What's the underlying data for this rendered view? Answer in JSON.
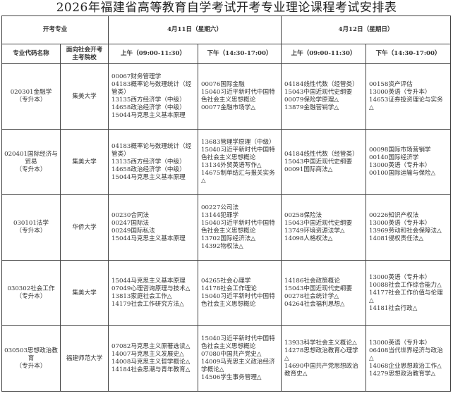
{
  "title": "2026年福建省高等教育自学考试开考专业理论课程考试安排表",
  "header": {
    "major_group": "开考专业",
    "day1": "4月11日（星期六）",
    "day2": "4月12日（星期日）",
    "col_major": "专业代码名称",
    "col_school": [
      "面向社会开考",
      "主考院校"
    ],
    "am": "上午（09:00-11:30）",
    "pm": "下午（14:30-17:00）"
  },
  "rows": [
    {
      "major": [
        "020301金融学",
        "（专升本）"
      ],
      "school": "集美大学",
      "d1_am": [
        "00067财务管理学",
        "04183概率论与数理统计（经",
        "管类）",
        "13135西方经济学（中级）",
        "14658政治经济学（中级）",
        "15044马克思主义基本原理"
      ],
      "d1_pm": [
        "00076国际金融",
        "15040习近平新时代中国特",
        "色社会主义思想概论",
        "00077金融市场学△"
      ],
      "d2_am": [
        "04184线性代数（经管类）",
        "15043中国近现代史纲要",
        "00079保险学原理△",
        "13879金融营销学△"
      ],
      "d2_pm": [
        "00158资产评估",
        "13000英语（专升本）",
        "14653证券投资理论与实务",
        "△"
      ]
    },
    {
      "major": [
        "020401国际经济与",
        "贸易",
        "（专升本）"
      ],
      "school": "集美大学",
      "d1_am": [
        "04183概率论与数理统计（经",
        "管类）",
        "13135西方经济学（中级）",
        "14658政治经济学（中级）",
        "15044马克思主义基本原理"
      ],
      "d1_pm": [
        "13683管理学原理（中级）",
        "15040习近平新时代中国特",
        "色社会主义思想概论",
        "13134外贸英语写作△",
        "14675制单结汇与报关实务",
        "△"
      ],
      "d2_am": [
        "04184线性代数（经管类）",
        "15043中国近现代史纲要",
        "00091国际商法△"
      ],
      "d2_pm": [
        "00098国际市场营销学",
        "00140国际经济学",
        "13000英语（专升本）",
        "00100国际运输与保险△"
      ]
    },
    {
      "major": [
        "030101法学",
        "（专升本）"
      ],
      "school": "华侨大学",
      "d1_am": [
        "00230合同法",
        "00247国际法",
        "00249国际私法",
        "15044马克思主义基本原理"
      ],
      "d1_pm": [
        "00227公司法",
        "13144犯罪学",
        "15040习近平新时代中国特",
        "色社会主义思想概论",
        "13702国际经济法△",
        "14392物权法△"
      ],
      "d2_am": [
        "00258保险法",
        "15043中国近现代史纲要",
        "13749环境资源法学△",
        "14098人格权法△"
      ],
      "d2_pm": [
        "00226知识产权法",
        "13000英语（专升本）",
        "13969劳动和社会保障法△",
        "14081侵权责任法△"
      ]
    },
    {
      "major": [
        "030302社会工作",
        "（专升本）"
      ],
      "school": "集美大学",
      "d1_am": [
        "15044马克思主义基本原理",
        "07049心理咨询原理与技术△",
        "13813家庭社会工作△",
        "14179社会工作研究方法△"
      ],
      "d1_pm": [
        "04265社会心理学",
        "14178社会工作理论",
        "15040习近平新时代中国特",
        "色社会主义思想概论"
      ],
      "d2_am": [
        "14186社会政策概论",
        "15043中国近现代史纲要",
        "00278社会统计学△",
        "04264社会福利思想△"
      ],
      "d2_pm": [
        "13000英语（专升本）",
        "10088社会工作综合能力△",
        "14177社会工作价值与伦理",
        "△",
        "14181社会行政△"
      ]
    },
    {
      "major": [
        "030503思想政治教",
        "育",
        "（专升本）"
      ],
      "school": "福建师范大学",
      "d1_am": [
        "07082马克思主义原著选读△",
        "14007马克思主义发展史△",
        "14008马克思主义哲学概论△",
        "14184社会思潮与青年教育△"
      ],
      "d1_pm": [
        "15040习近平新时代中国特",
        "色社会主义思想概论",
        "07080中国共产党史△",
        "14009马克思主义政治经济",
        "学概论△",
        "14506学生事务管理△"
      ],
      "d2_am": [
        "13933科学社会主义概论△",
        "14278思想政治教育心理学",
        "△",
        "14690中国共产党思想政治",
        "教育史△"
      ],
      "d2_pm": [
        "13000英语（专升本）",
        "06408当代世界经济与政治",
        "△",
        "14068企业思想政治工作△",
        "14279思想政治教育学△"
      ]
    }
  ]
}
